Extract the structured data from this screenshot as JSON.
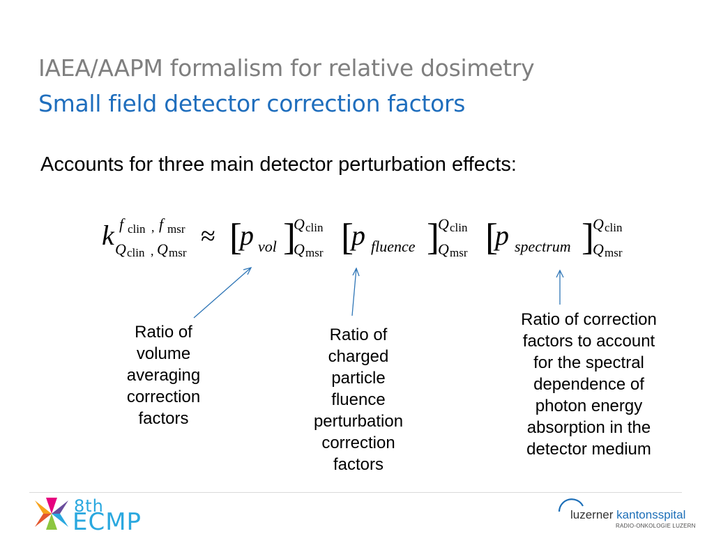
{
  "slide": {
    "title_line1": "IAEA/AAPM formalism for relative dosimetry",
    "title_line2": "Small field detector correction factors",
    "intro": "Accounts for three main detector perturbation effects:"
  },
  "equation": {
    "k": "k",
    "f_clin": "f",
    "f_clin_sub": "clin",
    "comma": ",",
    "f_msr": "f",
    "f_msr_sub": "msr",
    "Q_clin": "Q",
    "Q_clin_sub": "clin",
    "Q_msr": "Q",
    "Q_msr_sub": "msr",
    "approx": "≈",
    "p": "p",
    "p_vol_sub": "vol",
    "p_fluence_sub": "fluence",
    "p_spectrum_sub": "spectrum",
    "lbracket": "[",
    "rbracket": "]"
  },
  "annotations": {
    "vol": [
      "Ratio of",
      "volume",
      "averaging",
      "correction",
      "factors"
    ],
    "fluence": [
      "Ratio of",
      "charged",
      "particle",
      "fluence",
      "perturbation",
      "correction",
      "factors"
    ],
    "spectrum": [
      "Ratio of correction",
      "factors to account",
      "for the spectral",
      "dependence of",
      "photon energy",
      "absorption in the",
      "detector medium"
    ]
  },
  "footer": {
    "conference_super": "8th",
    "conference_name": "ECMP",
    "hospital_name_part1": "luzerner",
    "hospital_name_part2": "kantonsspital",
    "hospital_department": "RADIO-ONKOLOGIE LUZERN"
  },
  "colors": {
    "title_gray": "#7f7f7f",
    "title_blue": "#1f6ebd",
    "arrow_blue": "#2e75b6",
    "ecmp_cyan": "#2aa8df",
    "lk_blue": "#1d6fb8"
  },
  "icons": {
    "conference_logo": "ecmp-star-icon",
    "hospital_logo": "lks-arc-icon"
  }
}
